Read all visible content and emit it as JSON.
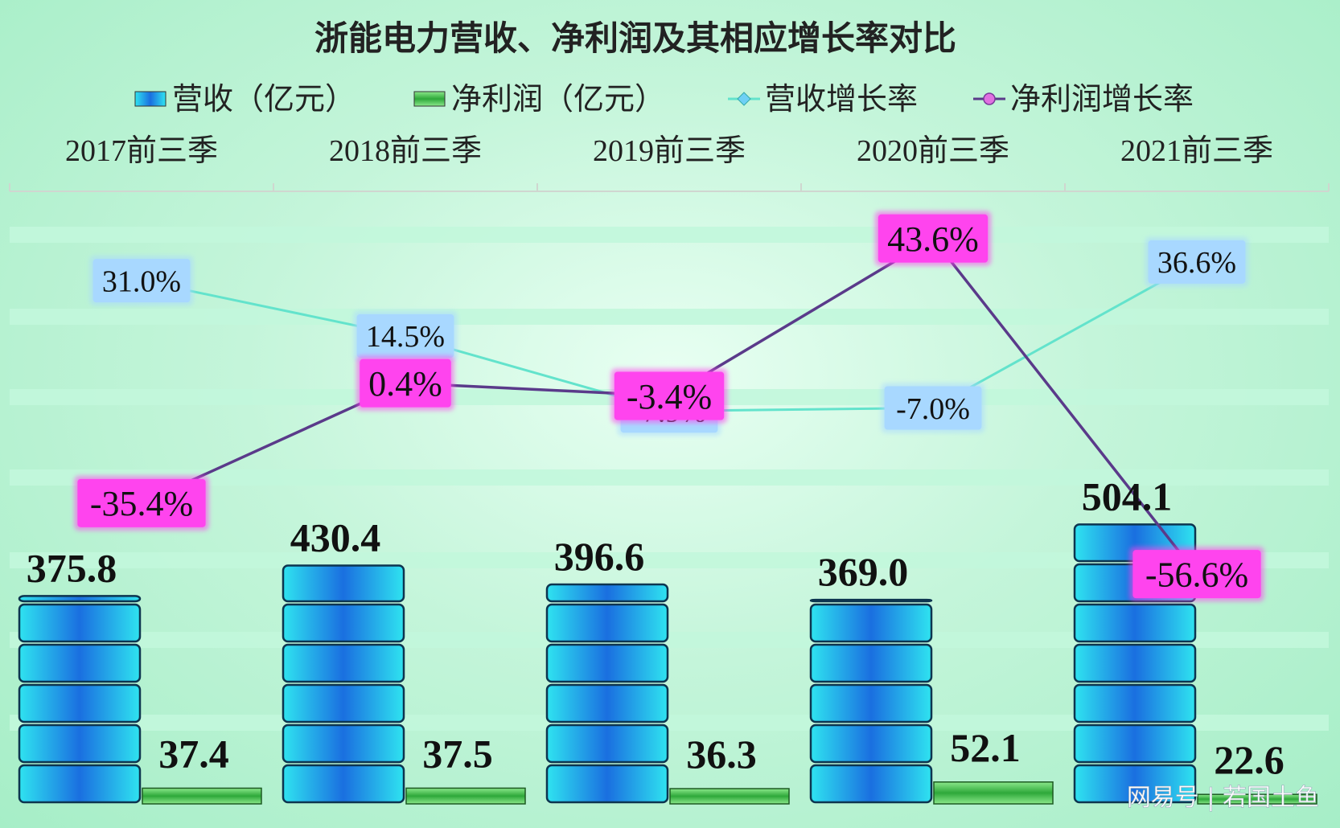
{
  "chart_data": {
    "type": "bar",
    "title": "浙能电力营收、净利润及其相应增长率对比",
    "categories": [
      "2017前三季",
      "2018前三季",
      "2019前三季",
      "2020前三季",
      "2021前三季"
    ],
    "series": [
      {
        "name": "营收（亿元）",
        "kind": "bar",
        "values": [
          375.8,
          430.4,
          396.6,
          369.0,
          504.1
        ],
        "labels": [
          "375.8",
          "430.4",
          "396.6",
          "369.0",
          "504.1"
        ]
      },
      {
        "name": "净利润（亿元）",
        "kind": "bar",
        "values": [
          37.4,
          37.5,
          36.3,
          52.1,
          22.6
        ],
        "labels": [
          "37.4",
          "37.5",
          "36.3",
          "52.1",
          "22.6"
        ]
      },
      {
        "name": "营收增长率",
        "kind": "line",
        "values": [
          31.0,
          14.5,
          -7.9,
          -7.0,
          36.6
        ],
        "labels": [
          "31.0%",
          "14.5%",
          "-7.9%",
          "-7.0%",
          "36.6%"
        ]
      },
      {
        "name": "净利润增长率",
        "kind": "line",
        "values": [
          -35.4,
          0.4,
          -3.4,
          43.6,
          -56.6
        ],
        "labels": [
          "-35.4%",
          "0.4%",
          "-3.4%",
          "43.6%",
          "-56.6%"
        ]
      }
    ],
    "bar_axis_max": 800,
    "rate_axis_range": [
      -70,
      50
    ],
    "legend_position": "top",
    "category_axis_position": "top",
    "colors": {
      "revenue_bar": "#22d6ea",
      "revenue_bar_dark": "#1565d8",
      "profit_bar": "#3cb844",
      "revenue_line": "#63e3cc",
      "profit_line": "#5a3a8a",
      "revenue_label_bg": "#a8d8ff",
      "profit_label_bg": "#ff44ee",
      "stripe": "#c2f7dc"
    }
  },
  "watermark": "网易号 | 若国土鱼"
}
